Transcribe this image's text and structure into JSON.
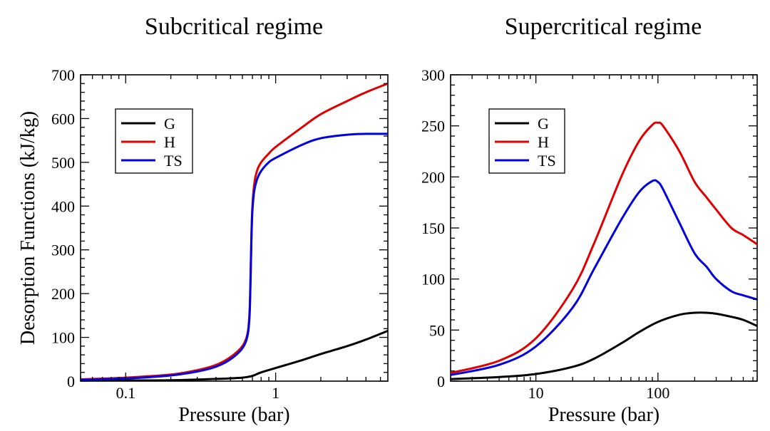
{
  "ylabel": "Desorption Functions (kJ/kg)",
  "chart_data": [
    {
      "type": "line",
      "title": "Subcritical regime",
      "xlabel": "Pressure (bar)",
      "xscale": "log",
      "xlim": [
        0.05,
        5.6
      ],
      "ylim": [
        0,
        700
      ],
      "xticks": [
        0.1,
        1
      ],
      "xtick_labels": [
        "0.1",
        "1"
      ],
      "yticks": [
        0,
        100,
        200,
        300,
        400,
        500,
        600,
        700
      ],
      "ytick_labels": [
        "0",
        "100",
        "200",
        "300",
        "400",
        "500",
        "600",
        "700"
      ],
      "grid": false,
      "legend_position": "top-left",
      "series": [
        {
          "name": "G",
          "color": "#000000",
          "x": [
            0.05,
            0.1,
            0.2,
            0.4,
            0.6,
            0.7,
            0.8,
            1.0,
            1.5,
            2.0,
            3.0,
            4.0,
            5.6
          ],
          "y": [
            1,
            1.5,
            2,
            5,
            8,
            12,
            20,
            30,
            48,
            62,
            80,
            95,
            115
          ]
        },
        {
          "name": "H",
          "color": "#e00000",
          "x": [
            0.05,
            0.1,
            0.2,
            0.3,
            0.4,
            0.5,
            0.6,
            0.65,
            0.67,
            0.68,
            0.69,
            0.7,
            0.72,
            0.75,
            0.8,
            0.9,
            1.0,
            1.5,
            2.0,
            3.0,
            4.0,
            5.6
          ],
          "y": [
            4,
            8,
            15,
            25,
            37,
            55,
            80,
            110,
            160,
            240,
            340,
            400,
            450,
            480,
            500,
            520,
            535,
            580,
            610,
            640,
            660,
            680
          ]
        },
        {
          "name": "TS",
          "color": "#0000e0",
          "x": [
            0.05,
            0.1,
            0.2,
            0.3,
            0.4,
            0.5,
            0.6,
            0.65,
            0.67,
            0.68,
            0.69,
            0.7,
            0.72,
            0.75,
            0.8,
            0.9,
            1.0,
            1.5,
            2.0,
            3.0,
            4.0,
            5.6
          ],
          "y": [
            3,
            6,
            13,
            22,
            33,
            50,
            75,
            105,
            150,
            230,
            330,
            390,
            435,
            460,
            480,
            500,
            510,
            540,
            555,
            563,
            565,
            565
          ]
        }
      ]
    },
    {
      "type": "line",
      "title": "Supercritical regime",
      "xlabel": "Pressure (bar)",
      "xscale": "log",
      "xlim": [
        2,
        650
      ],
      "ylim": [
        0,
        300
      ],
      "xticks": [
        10,
        100
      ],
      "xtick_labels": [
        "10",
        "100"
      ],
      "yticks": [
        0,
        50,
        100,
        150,
        200,
        250,
        300
      ],
      "ytick_labels": [
        "0",
        "50",
        "100",
        "150",
        "200",
        "250",
        "300"
      ],
      "grid": false,
      "legend_position": "top-left",
      "series": [
        {
          "name": "G",
          "color": "#000000",
          "x": [
            2,
            5,
            10,
            20,
            30,
            50,
            70,
            100,
            150,
            200,
            250,
            300,
            400,
            500,
            650
          ],
          "y": [
            2,
            4,
            7,
            14,
            22,
            37,
            48,
            58,
            65,
            67,
            67,
            66,
            63,
            60,
            54
          ]
        },
        {
          "name": "H",
          "color": "#e00000",
          "x": [
            2,
            5,
            10,
            20,
            30,
            50,
            70,
            90,
            100,
            110,
            150,
            200,
            250,
            300,
            400,
            500,
            650
          ],
          "y": [
            8,
            20,
            42,
            90,
            135,
            200,
            235,
            251,
            253,
            250,
            225,
            195,
            180,
            168,
            150,
            143,
            134
          ]
        },
        {
          "name": "TS",
          "color": "#0000e0",
          "x": [
            2,
            5,
            10,
            20,
            30,
            50,
            70,
            90,
            100,
            110,
            150,
            200,
            250,
            300,
            400,
            500,
            650
          ],
          "y": [
            6,
            16,
            34,
            72,
            110,
            158,
            185,
            196,
            195,
            188,
            155,
            125,
            112,
            100,
            88,
            84,
            80
          ]
        }
      ]
    }
  ]
}
